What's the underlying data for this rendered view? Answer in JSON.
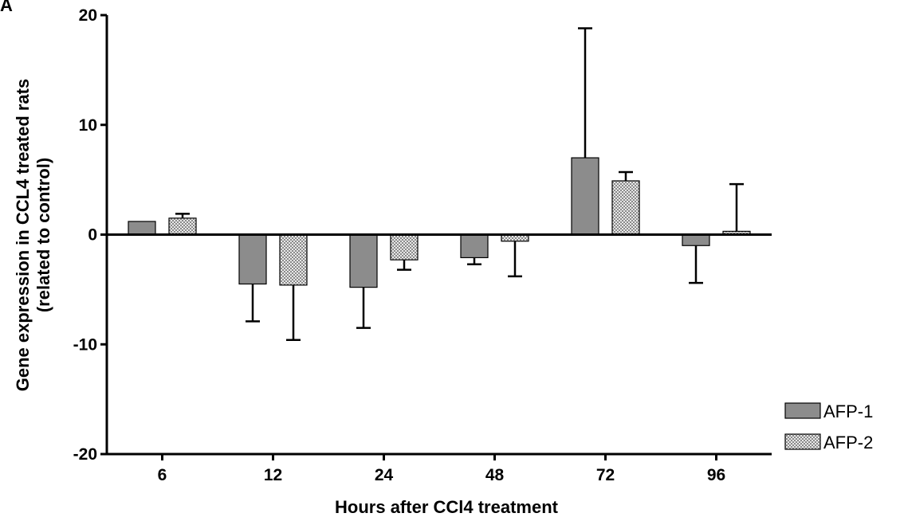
{
  "figure": {
    "panel_letter": "A"
  },
  "chart_data": {
    "type": "bar",
    "xlabel": "Hours after CCl4 treatment",
    "ylabel_line1": "Gene expression in CCL4 treated rats",
    "ylabel_line2": "(related to control)",
    "ylim": [
      -20,
      20
    ],
    "yticks": [
      "-20",
      "-10",
      "0",
      "10",
      "20"
    ],
    "ytick_values": [
      -20,
      -10,
      0,
      10,
      20
    ],
    "categories": [
      "6",
      "12",
      "24",
      "48",
      "72",
      "96"
    ],
    "legend_position": "bottom-right",
    "grid": false,
    "series": [
      {
        "name": "AFP-1",
        "pattern": "solid-gray",
        "color": "#8c8c8c",
        "values": [
          1.2,
          -4.5,
          -4.8,
          -2.1,
          7.0,
          -1.0
        ],
        "error": [
          0.0,
          3.4,
          3.7,
          0.6,
          11.8,
          3.4
        ]
      },
      {
        "name": "AFP-2",
        "pattern": "dotted-gray",
        "color": "#bdbdbd",
        "values": [
          1.5,
          -4.6,
          -2.3,
          -0.6,
          4.9,
          0.3
        ],
        "error": [
          0.4,
          5.0,
          0.9,
          3.2,
          0.8,
          4.3
        ]
      }
    ]
  }
}
